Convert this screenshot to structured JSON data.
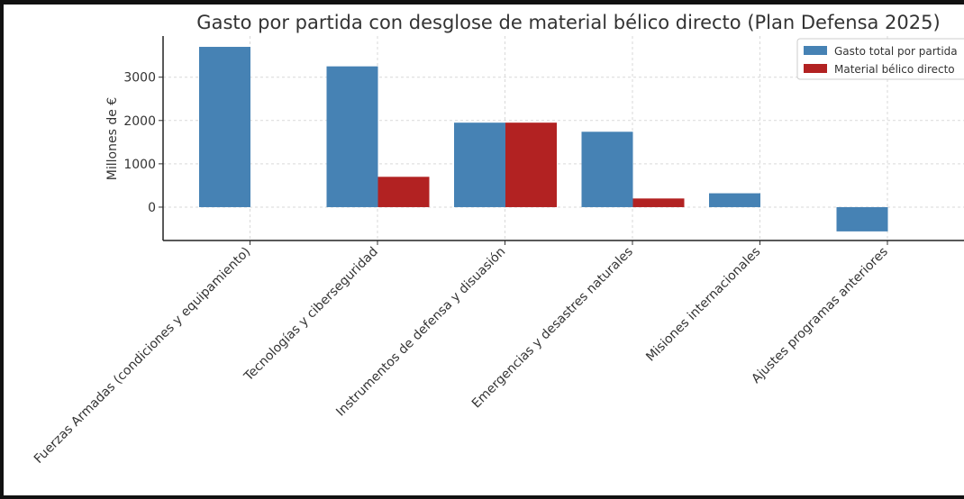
{
  "chart_data": {
    "type": "bar",
    "title": "Gasto por partida con desglose de material bélico directo (Plan Defensa 2025)",
    "xlabel": "",
    "ylabel": "Millones de €",
    "categories": [
      "Fuerzas Armadas (condiciones y equipamiento)",
      "Tecnologías y ciberseguridad",
      "Instrumentos de defensa y disuasión",
      "Emergencias y desastres naturales",
      "Misiones internacionales",
      "Ajustes programas anteriores"
    ],
    "series": [
      {
        "name": "Gasto total por partida",
        "color": "#4682b4",
        "values": [
          3700,
          3250,
          1950,
          1740,
          320,
          -560
        ]
      },
      {
        "name": "Material bélico directo",
        "color": "#b22222",
        "values": [
          0,
          700,
          1950,
          200,
          0,
          0
        ]
      }
    ],
    "ylim": [
      -770,
      3950
    ],
    "yticks": [
      0,
      1000,
      2000,
      3000
    ],
    "grid": true,
    "legend_position": "top-right"
  }
}
